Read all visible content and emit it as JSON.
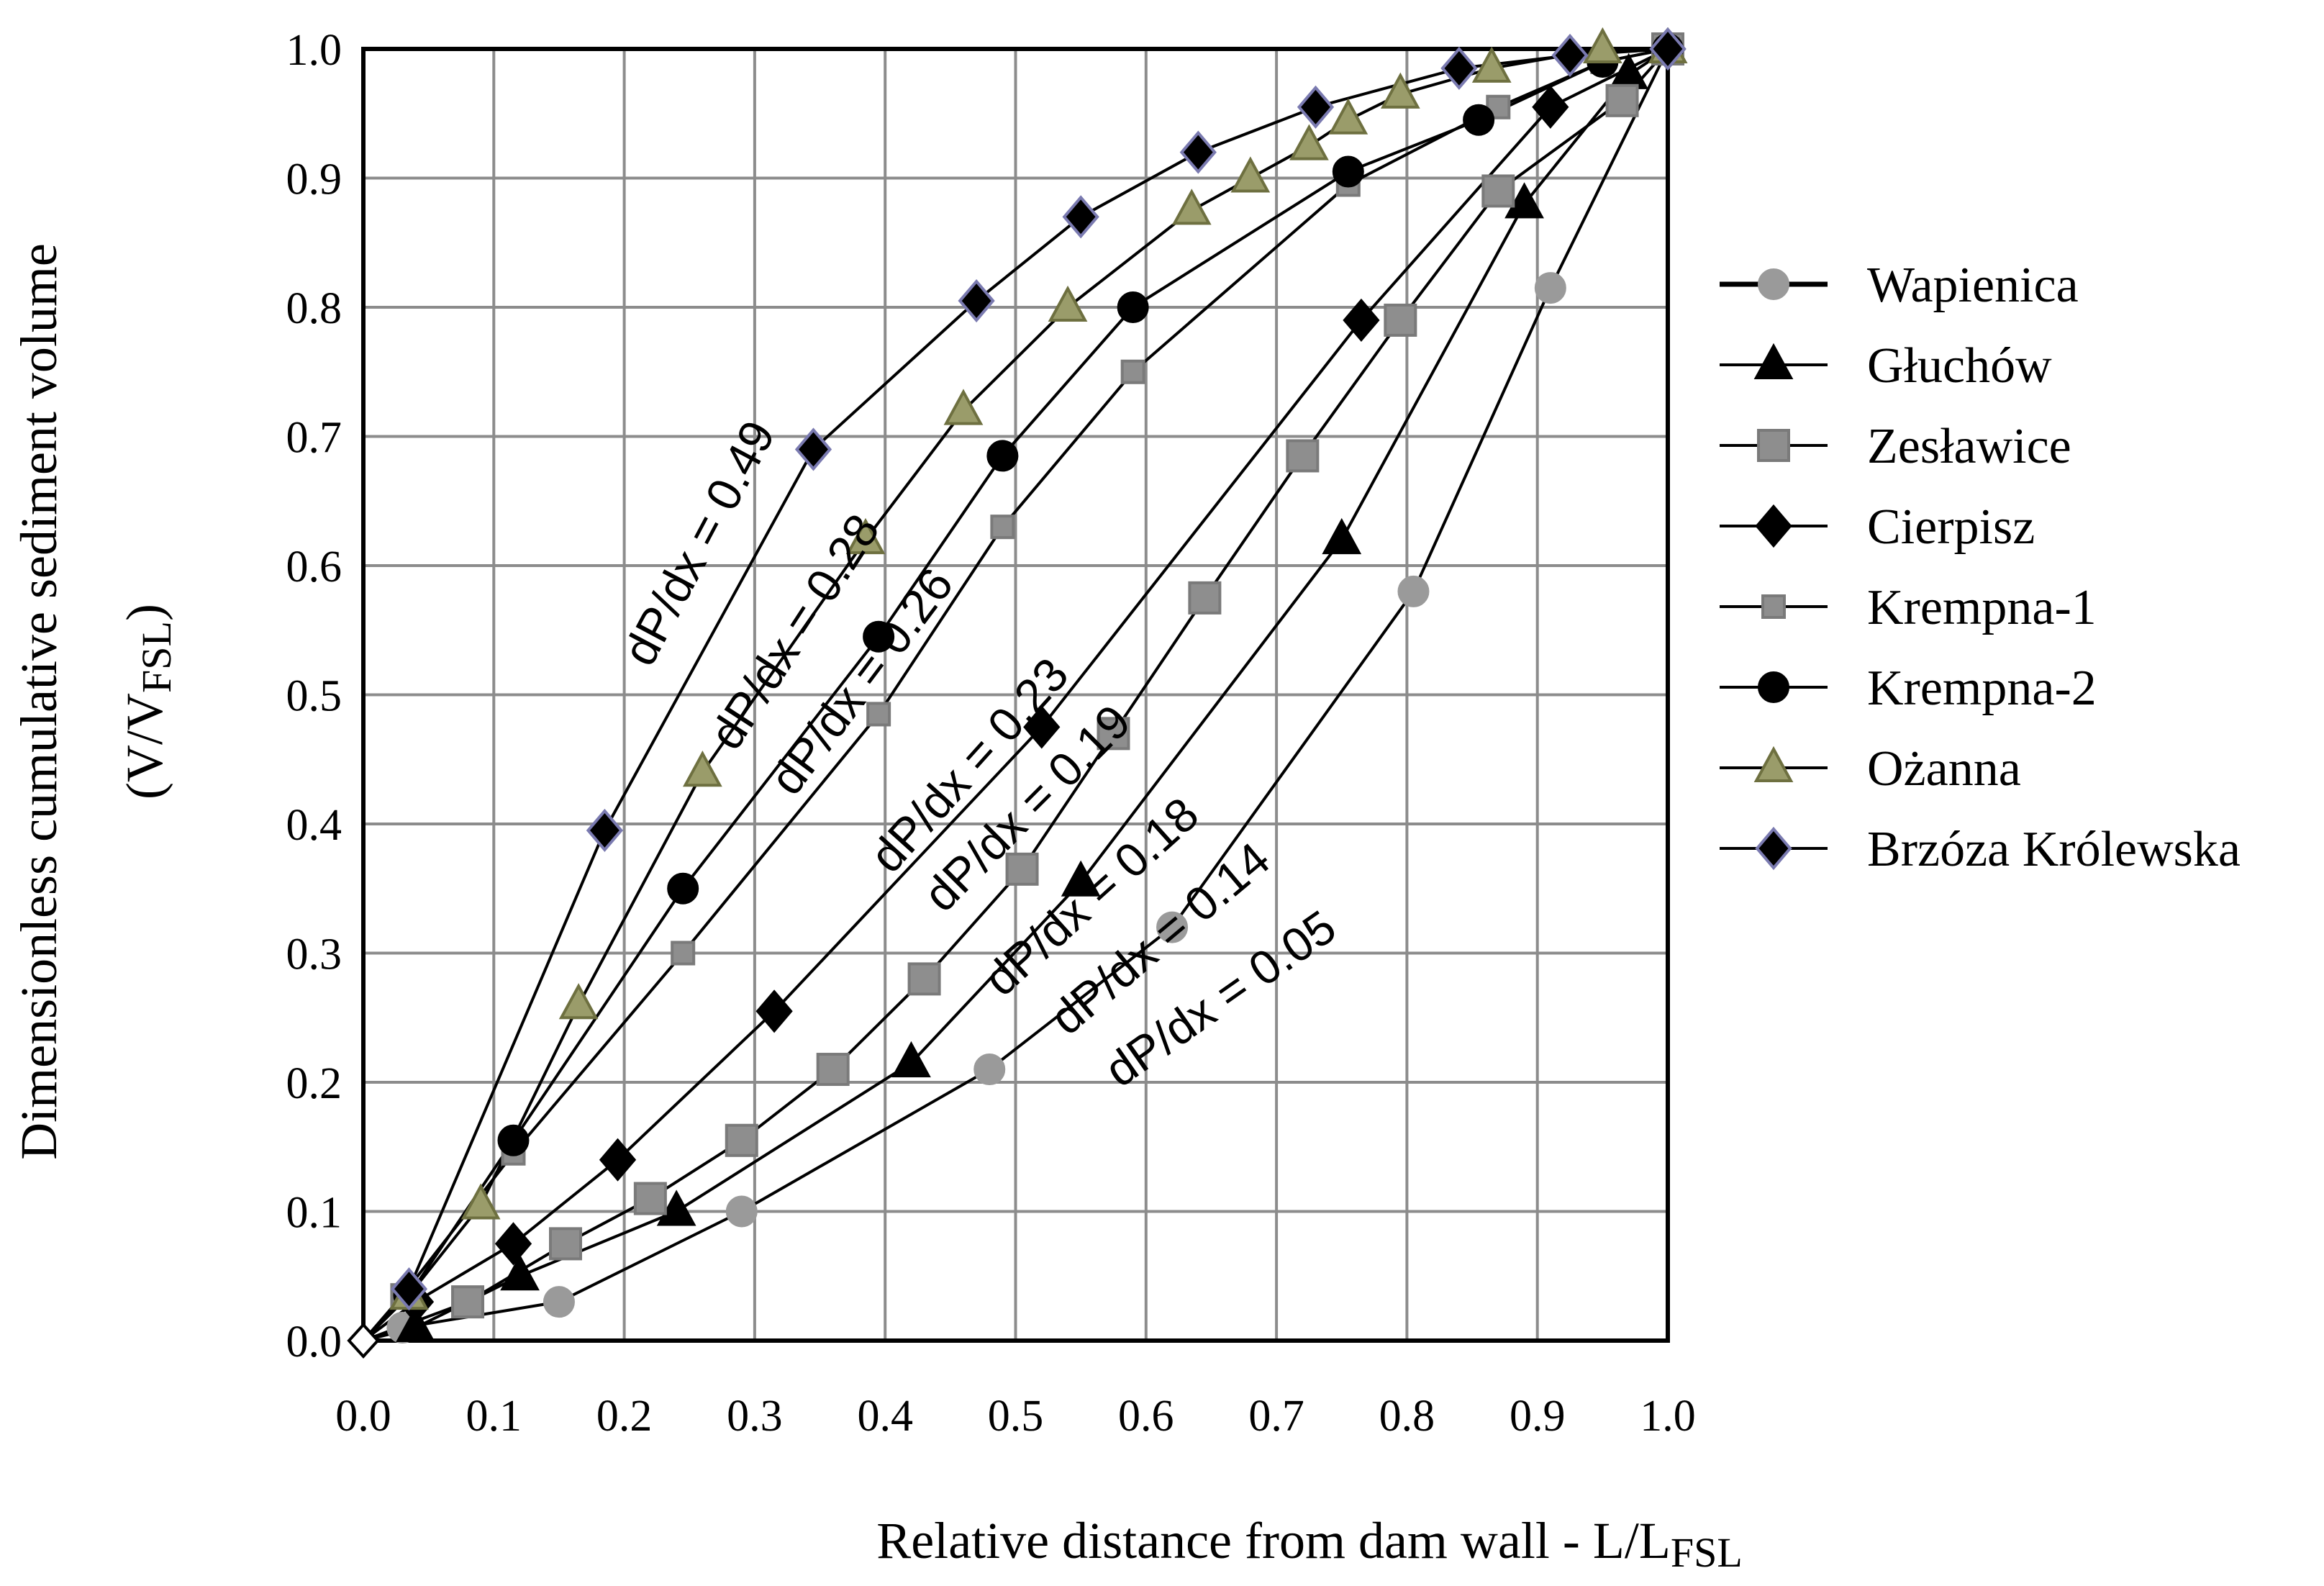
{
  "chart_data": {
    "type": "line",
    "xlabel": "Relative distance from dam wall - L/L",
    "xlabel_sub": "FSL",
    "ylabel": "Dimensionless cumulative sediment volume",
    "ylabel2": "(V/V",
    "ylabel2_sub": "FSL",
    "ylabel2_end": ")",
    "xlim": [
      0,
      1
    ],
    "ylim": [
      0,
      1
    ],
    "xticks": [
      0,
      0.1,
      0.2,
      0.3,
      0.4,
      0.5,
      0.6,
      0.7,
      0.8,
      0.9,
      1.0
    ],
    "yticks": [
      0,
      0.1,
      0.2,
      0.3,
      0.4,
      0.5,
      0.6,
      0.7,
      0.8,
      0.9,
      1.0
    ],
    "grid": true,
    "legend_position": "right",
    "series": [
      {
        "name": "Wapienica",
        "marker": "circle",
        "color": "#9a9a9a",
        "stroke": "#9a9a9a",
        "x": [
          0,
          0.03,
          0.15,
          0.29,
          0.48,
          0.62,
          0.805,
          0.91,
          1.0
        ],
        "y": [
          0,
          0.01,
          0.03,
          0.1,
          0.21,
          0.32,
          0.58,
          0.815,
          1.0
        ]
      },
      {
        "name": "Głuchów",
        "marker": "triangle",
        "color": "#000000",
        "stroke": "#000000",
        "x": [
          0,
          0.04,
          0.12,
          0.24,
          0.42,
          0.55,
          0.75,
          0.89,
          0.97,
          1.0
        ],
        "y": [
          0,
          0.01,
          0.05,
          0.1,
          0.215,
          0.355,
          0.62,
          0.88,
          0.98,
          1.0
        ]
      },
      {
        "name": "Zesławice",
        "marker": "square",
        "color": "#8e8e8e",
        "stroke": "#7a7a7a",
        "x": [
          0,
          0.08,
          0.155,
          0.22,
          0.29,
          0.36,
          0.43,
          0.505,
          0.575,
          0.645,
          0.72,
          0.795,
          0.87,
          0.965,
          1.0
        ],
        "y": [
          0,
          0.03,
          0.075,
          0.11,
          0.155,
          0.21,
          0.28,
          0.365,
          0.47,
          0.575,
          0.685,
          0.79,
          0.89,
          0.96,
          1.0
        ]
      },
      {
        "name": "Cierpisz",
        "marker": "diamond",
        "color": "#000000",
        "stroke": "#000000",
        "x": [
          0,
          0.04,
          0.115,
          0.195,
          0.315,
          0.52,
          0.765,
          0.91,
          1.0
        ],
        "y": [
          0,
          0.03,
          0.075,
          0.14,
          0.255,
          0.475,
          0.79,
          0.955,
          1.0
        ]
      },
      {
        "name": "Krempna-1",
        "marker": "smallsquare",
        "color": "#8e8e8e",
        "stroke": "#7a7a7a",
        "x": [
          0,
          0.03,
          0.115,
          0.245,
          0.395,
          0.49,
          0.59,
          0.755,
          0.87,
          0.95,
          1.0
        ],
        "y": [
          0,
          0.035,
          0.145,
          0.3,
          0.485,
          0.63,
          0.75,
          0.895,
          0.955,
          0.99,
          1.0
        ]
      },
      {
        "name": "Krempna-2",
        "marker": "circle",
        "color": "#000000",
        "stroke": "#000000",
        "x": [
          0,
          0.035,
          0.115,
          0.245,
          0.395,
          0.49,
          0.59,
          0.755,
          0.855,
          0.95,
          1.0
        ],
        "y": [
          0,
          0.035,
          0.155,
          0.35,
          0.545,
          0.685,
          0.8,
          0.905,
          0.945,
          0.99,
          1.0
        ]
      },
      {
        "name": "Ożanna",
        "marker": "triangle",
        "color": "#9a9c6a",
        "stroke": "#6e7040",
        "x": [
          0,
          0.035,
          0.09,
          0.165,
          0.26,
          0.385,
          0.46,
          0.54,
          0.635,
          0.68,
          0.725,
          0.755,
          0.795,
          0.865,
          0.95,
          1.0
        ],
        "y": [
          0,
          0.035,
          0.105,
          0.26,
          0.44,
          0.62,
          0.72,
          0.8,
          0.875,
          0.9,
          0.925,
          0.945,
          0.965,
          0.985,
          1.0,
          1.0
        ]
      },
      {
        "name": "Brzóza Królewska",
        "marker": "diamond",
        "color": "#000000",
        "stroke": "#7a7ab0",
        "x": [
          0,
          0.035,
          0.185,
          0.345,
          0.47,
          0.55,
          0.64,
          0.73,
          0.84,
          0.925,
          1.0
        ],
        "y": [
          0,
          0.04,
          0.395,
          0.69,
          0.805,
          0.87,
          0.92,
          0.955,
          0.985,
          0.995,
          1.0
        ]
      }
    ],
    "annotations": [
      {
        "text": "dP/dx = 0.49",
        "x": 0.22,
        "y": 0.52,
        "angle": -62
      },
      {
        "text": "dP/dx = 0.28",
        "x": 0.285,
        "y": 0.455,
        "angle": -57
      },
      {
        "text": "dP/dx = 0.26",
        "x": 0.33,
        "y": 0.42,
        "angle": -53
      },
      {
        "text": "dP/dx = 0.23",
        "x": 0.405,
        "y": 0.36,
        "angle": -48
      },
      {
        "text": "dP/dx = 0.19",
        "x": 0.445,
        "y": 0.33,
        "angle": -45
      },
      {
        "text": "dP/dx = 0.18",
        "x": 0.49,
        "y": 0.265,
        "angle": -42
      },
      {
        "text": "dP/dx = 0.14",
        "x": 0.54,
        "y": 0.235,
        "angle": -40
      },
      {
        "text": "dP/dx = 0.05",
        "x": 0.58,
        "y": 0.195,
        "angle": -35
      }
    ]
  }
}
